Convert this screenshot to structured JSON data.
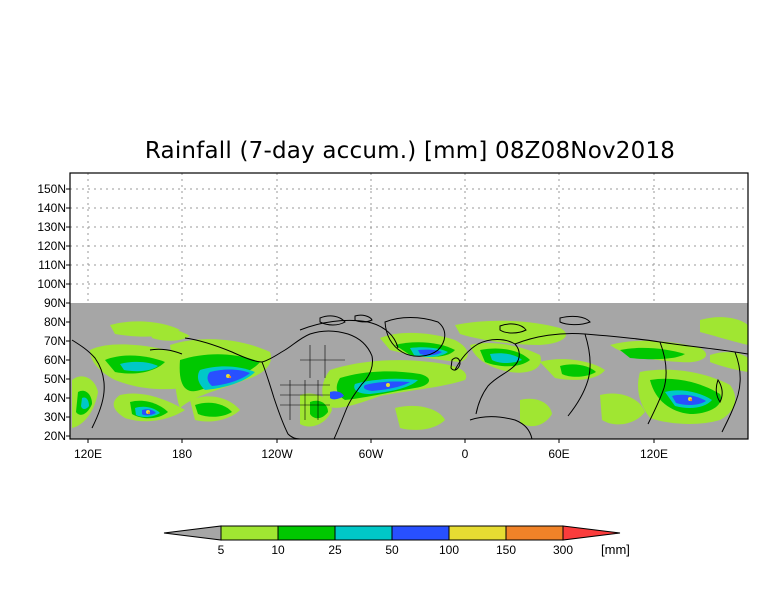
{
  "title": "Rainfall (7-day accum.) [mm] 08Z08Nov2018",
  "lat_labels": [
    "150N",
    "140N",
    "130N",
    "120N",
    "110N",
    "100N",
    "90N",
    "80N",
    "70N",
    "60N",
    "50N",
    "40N",
    "30N",
    "20N"
  ],
  "lon_labels": [
    "120E",
    "180",
    "120W",
    "60W",
    "0",
    "60E",
    "120E"
  ],
  "colorbar": {
    "levels": [
      "5",
      "10",
      "25",
      "50",
      "100",
      "150",
      "300"
    ],
    "unit": "[mm]",
    "colors": [
      "#a6a6a6",
      "#a0e632",
      "#00c800",
      "#00c8c8",
      "#2850ff",
      "#e6dc32",
      "#f08228",
      "#fa3c3c"
    ]
  },
  "map": {
    "missing_color": "#a6a6a6",
    "no_data_above": "90N",
    "grid": "dotted",
    "coastline_color": "#000000"
  }
}
